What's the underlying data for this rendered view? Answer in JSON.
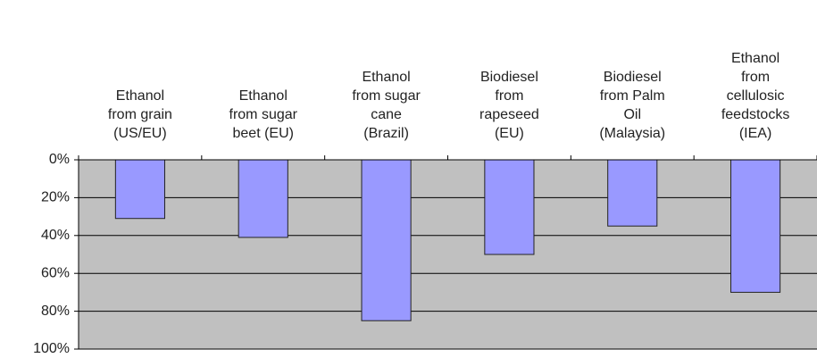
{
  "chart_data": {
    "type": "bar",
    "categories": [
      "Ethanol\nfrom grain\n(US/EU)",
      "Ethanol\nfrom sugar\nbeet (EU)",
      "Ethanol\nfrom sugar\ncane\n(Brazil)",
      "Biodiesel\nfrom\nrapeseed\n(EU)",
      "Biodiesel\nfrom Palm\nOil\n(Malaysia)",
      "Ethanol\nfrom\ncellulosic\nfeedstocks\n(IEA)"
    ],
    "values": [
      31,
      41,
      85,
      50,
      35,
      70
    ],
    "color": "#9999ff",
    "ylim": [
      0,
      100
    ],
    "y_inverted": true,
    "yticks": [
      {
        "value": 0,
        "label": "0%"
      },
      {
        "value": 20,
        "label": "20%"
      },
      {
        "value": 40,
        "label": "40%"
      },
      {
        "value": 60,
        "label": "60%"
      },
      {
        "value": 80,
        "label": "80%"
      },
      {
        "value": 100,
        "label": "100%"
      }
    ],
    "grid": true
  }
}
